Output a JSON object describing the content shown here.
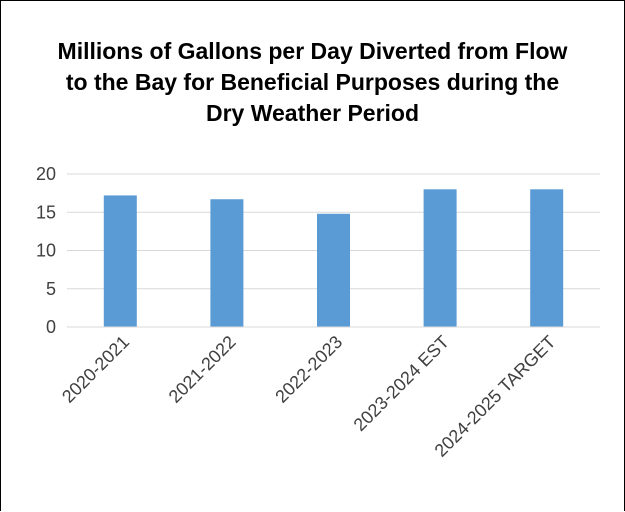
{
  "chart_data": {
    "type": "bar",
    "title_lines": [
      "Millions of Gallons per Day Diverted from Flow",
      "to the Bay for Beneficial Purposes during the",
      "Dry Weather Period"
    ],
    "categories": [
      "2020-2021",
      "2021-2022",
      "2022-2023",
      "2023-2024 EST",
      "2024-2025 TARGET"
    ],
    "values": [
      17.2,
      16.7,
      14.8,
      18,
      18
    ],
    "yticks": [
      0,
      5,
      10,
      15,
      20
    ],
    "ylim": [
      0,
      20
    ],
    "grid": true,
    "legend": false,
    "bar_color": "#5B9BD5",
    "gridline_color": "#D9D9D9"
  }
}
